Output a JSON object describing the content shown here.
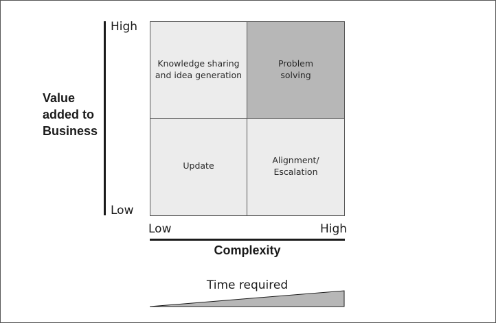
{
  "diagram": {
    "y_axis": {
      "title_lines": [
        "Value",
        "added to",
        "Business"
      ],
      "high": "High",
      "low": "Low"
    },
    "x_axis": {
      "title": "Complexity",
      "low": "Low",
      "high": "High"
    },
    "quadrants": {
      "top_left": {
        "label": "Knowledge sharing\nand idea generation",
        "fill": "#ececec"
      },
      "top_right": {
        "label": "Problem\nsolving",
        "fill": "#b7b7b7"
      },
      "bottom_left": {
        "label": "Update",
        "fill": "#ececec"
      },
      "bottom_right": {
        "label": "Alignment/\nEscalation",
        "fill": "#ececec"
      }
    },
    "time_indicator": {
      "label": "Time required",
      "fill": "#b7b7b7"
    }
  }
}
